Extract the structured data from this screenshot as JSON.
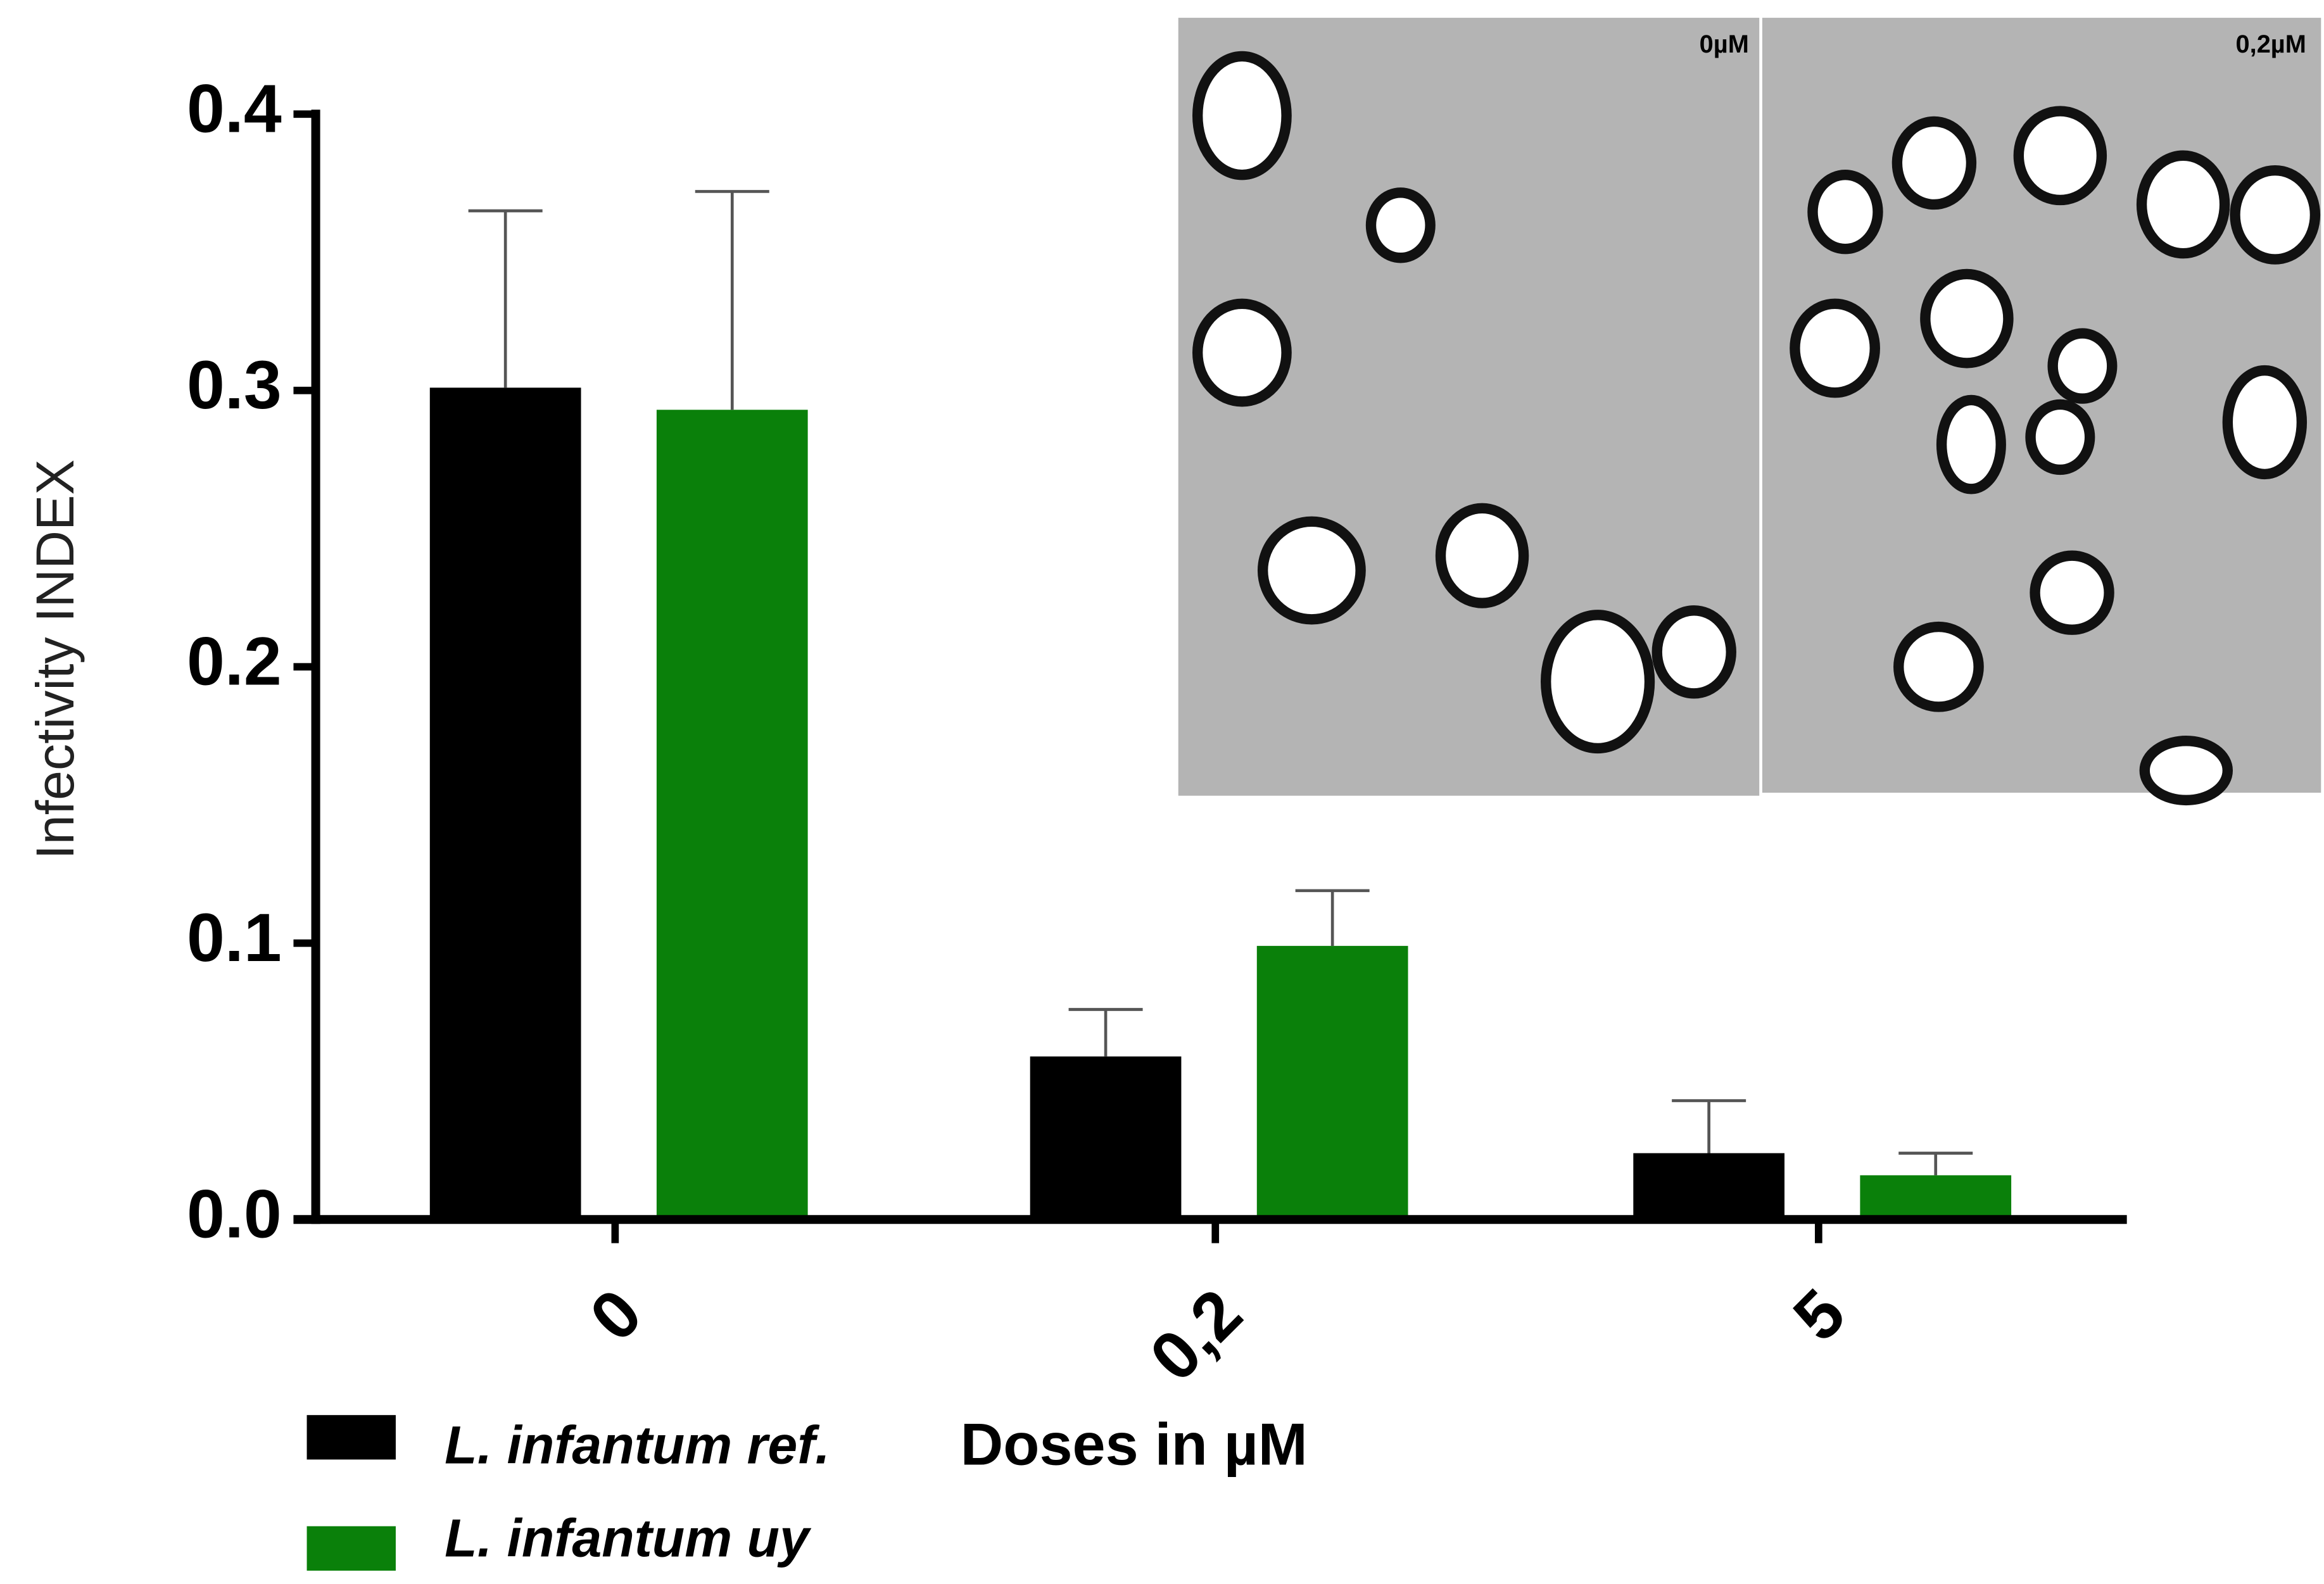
{
  "chart_data": {
    "type": "bar",
    "y_label": "Infectivity INDEX",
    "x_label": "Doses in µM",
    "categories": [
      "0",
      "0,2",
      "5"
    ],
    "series": [
      {
        "name": "L. infantum ref.",
        "color": "#000000",
        "values": [
          0.301,
          0.059,
          0.024
        ],
        "errors": [
          0.064,
          0.017,
          0.019
        ]
      },
      {
        "name": "L. infantum uy",
        "color": "#0a800a",
        "values": [
          0.293,
          0.099,
          0.016
        ],
        "errors": [
          0.079,
          0.02,
          0.008
        ]
      }
    ],
    "ylim": [
      0,
      0.4
    ],
    "yticks": [
      {
        "value": 0,
        "label": "0.0"
      },
      0.1,
      0.2,
      0.3,
      0.4
    ],
    "inset_labels": [
      "0µM",
      "0,2µM"
    ]
  }
}
